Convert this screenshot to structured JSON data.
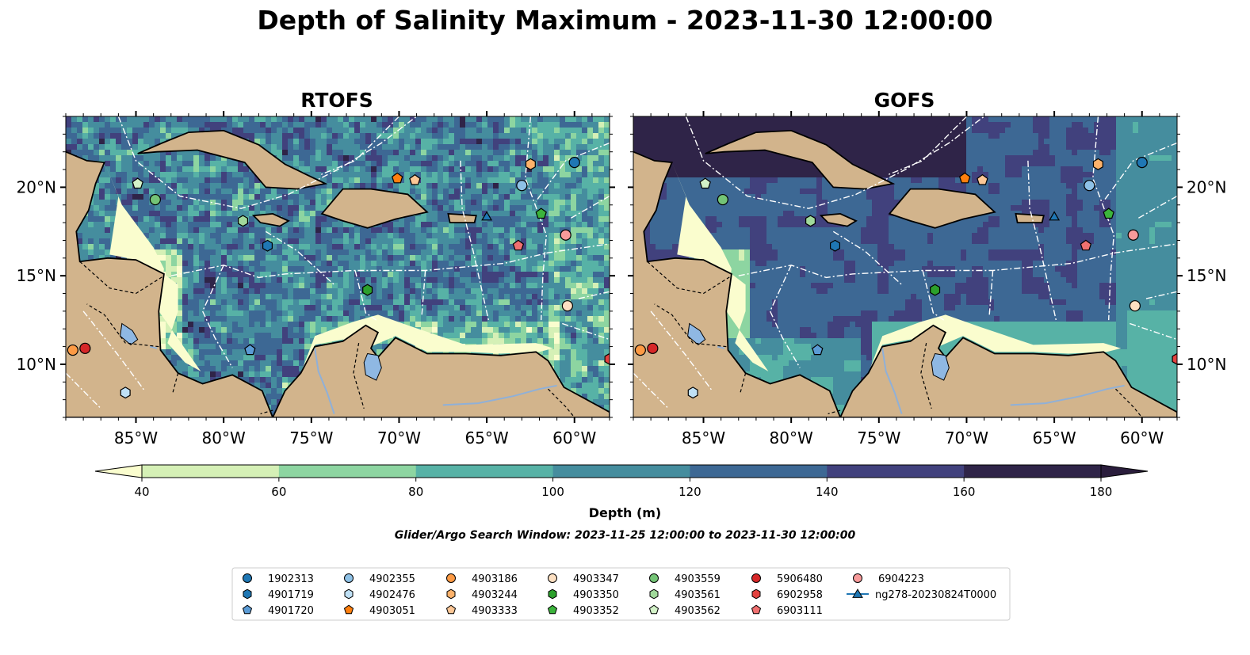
{
  "title": "Depth of Salinity Maximum - 2023-11-30 12:00:00",
  "panels": [
    {
      "title": "RTOFS"
    },
    {
      "title": "GOFS"
    }
  ],
  "map": {
    "extent": {
      "lon": [
        -89,
        -58
      ],
      "lat": [
        7,
        24
      ]
    },
    "lon_ticks": [
      "85°W",
      "80°W",
      "75°W",
      "70°W",
      "65°W",
      "60°W"
    ],
    "lat_ticks": [
      "20°N",
      "15°N",
      "10°N"
    ],
    "land_color": "#d2b48c",
    "water_color": "#8fb8e3"
  },
  "colorbar": {
    "label": "Depth (m)",
    "ticks": [
      "40",
      "60",
      "80",
      "100",
      "120",
      "140",
      "160",
      "180"
    ],
    "colors": [
      "#d5f0b6",
      "#8dd5a1",
      "#57b2a6",
      "#458d9e",
      "#3d6894",
      "#41417d",
      "#2f2448"
    ],
    "under_color": "#fafdce",
    "over_color": "#2a1d3c"
  },
  "search_window": "Glider/Argo Search Window: 2023-11-25 12:00:00 to 2023-11-30 12:00:00",
  "legend": [
    {
      "label": "1902313",
      "color": "#1f77b4",
      "shape": "circle"
    },
    {
      "label": "4901719",
      "color": "#1f77b4",
      "shape": "hexagon"
    },
    {
      "label": "4901720",
      "color": "#5b9bd5",
      "shape": "pentagon"
    },
    {
      "label": "4902355",
      "color": "#8ec1e6",
      "shape": "circle"
    },
    {
      "label": "4902476",
      "color": "#bfe0f5",
      "shape": "hexagon"
    },
    {
      "label": "4903051",
      "color": "#ff7f0e",
      "shape": "pentagon"
    },
    {
      "label": "4903186",
      "color": "#fd9a44",
      "shape": "circle"
    },
    {
      "label": "4903244",
      "color": "#fdb26b",
      "shape": "hexagon"
    },
    {
      "label": "4903333",
      "color": "#fdc796",
      "shape": "pentagon"
    },
    {
      "label": "4903347",
      "color": "#fde0c2",
      "shape": "circle"
    },
    {
      "label": "4903350",
      "color": "#2ca02c",
      "shape": "hexagon"
    },
    {
      "label": "4903352",
      "color": "#3cb43c",
      "shape": "pentagon"
    },
    {
      "label": "4903559",
      "color": "#74c476",
      "shape": "circle"
    },
    {
      "label": "4903561",
      "color": "#a1d99b",
      "shape": "hexagon"
    },
    {
      "label": "4903562",
      "color": "#d3f2c8",
      "shape": "pentagon"
    },
    {
      "label": "5906480",
      "color": "#d62728",
      "shape": "circle"
    },
    {
      "label": "6902958",
      "color": "#e3423f",
      "shape": "hexagon"
    },
    {
      "label": "6903111",
      "color": "#f07070",
      "shape": "pentagon"
    },
    {
      "label": "6904223",
      "color": "#f79a9a",
      "shape": "circle"
    },
    {
      "label": "ng278-20230824T0000",
      "color": "#1f77b4",
      "shape": "triangle-line"
    }
  ],
  "floats": [
    {
      "id": "1902313",
      "lon": -60.0,
      "lat": 21.4
    },
    {
      "id": "4901719",
      "lon": -77.5,
      "lat": 16.7
    },
    {
      "id": "4901720",
      "lon": -78.5,
      "lat": 10.8
    },
    {
      "id": "4902355",
      "lon": -63.0,
      "lat": 20.1
    },
    {
      "id": "4902476",
      "lon": -85.6,
      "lat": 8.4
    },
    {
      "id": "4903051",
      "lon": -70.1,
      "lat": 20.5
    },
    {
      "id": "4903186",
      "lon": -88.6,
      "lat": 10.8
    },
    {
      "id": "4903244",
      "lon": -62.5,
      "lat": 21.3
    },
    {
      "id": "4903333",
      "lon": -69.1,
      "lat": 20.4
    },
    {
      "id": "4903347",
      "lon": -60.4,
      "lat": 13.3
    },
    {
      "id": "4903350",
      "lon": -71.8,
      "lat": 14.2
    },
    {
      "id": "4903352",
      "lon": -61.9,
      "lat": 18.5
    },
    {
      "id": "4903559",
      "lon": -83.9,
      "lat": 19.3
    },
    {
      "id": "4903561",
      "lon": -78.9,
      "lat": 18.1
    },
    {
      "id": "4903562",
      "lon": -84.9,
      "lat": 20.2
    },
    {
      "id": "5906480",
      "lon": -87.9,
      "lat": 10.9
    },
    {
      "id": "6902958",
      "lon": -58.0,
      "lat": 10.3
    },
    {
      "id": "6903111",
      "lon": -63.2,
      "lat": 16.7
    },
    {
      "id": "6904223",
      "lon": -60.5,
      "lat": 17.3
    },
    {
      "id": "ng278-20230824T0000",
      "lon": -65.0,
      "lat": 18.3
    }
  ]
}
